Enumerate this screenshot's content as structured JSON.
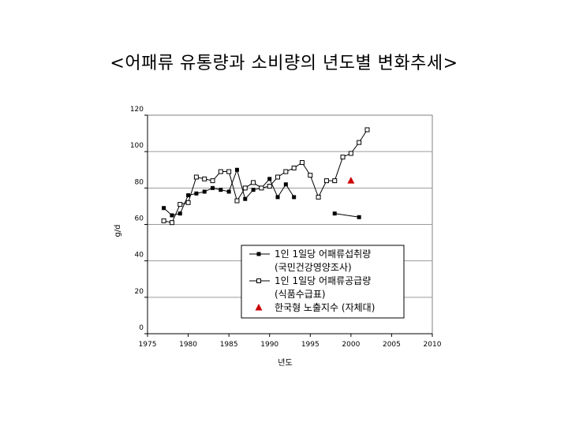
{
  "slide": {
    "title": "<어패류 유통량과 소비량의 년도별 변화추세>"
  },
  "chart_data": {
    "type": "line",
    "xlabel": "년도",
    "ylabel": "g/d",
    "xlim": [
      1975,
      2010
    ],
    "ylim": [
      0,
      120
    ],
    "x_ticks": [
      1975,
      1980,
      1985,
      1990,
      1995,
      2000,
      2005,
      2010
    ],
    "y_ticks": [
      0,
      20,
      40,
      60,
      80,
      100,
      120
    ],
    "grid": "horizontal",
    "legend_position": "lower-right",
    "series": [
      {
        "name_lines": [
          "1인 1일당 어패류섭취량",
          "(국민건강영양조사)"
        ],
        "marker": "filled-square",
        "color": "#000000",
        "segments": [
          [
            [
              1977,
              69
            ],
            [
              1978,
              65
            ],
            [
              1979,
              66
            ],
            [
              1980,
              76
            ],
            [
              1981,
              77
            ],
            [
              1982,
              78
            ],
            [
              1983,
              80
            ],
            [
              1984,
              79
            ],
            [
              1985,
              78
            ],
            [
              1986,
              90
            ],
            [
              1987,
              74
            ],
            [
              1988,
              79
            ],
            [
              1989,
              80
            ],
            [
              1990,
              85
            ],
            [
              1991,
              75
            ],
            [
              1992,
              82
            ],
            [
              1993,
              75
            ]
          ],
          [
            [
              1998,
              66
            ],
            [
              2001,
              64
            ]
          ]
        ]
      },
      {
        "name_lines": [
          "1인 1일당 어패류공급량",
          "(식품수급표)"
        ],
        "marker": "open-square",
        "color": "#000000",
        "segments": [
          [
            [
              1977,
              62
            ],
            [
              1978,
              61
            ],
            [
              1979,
              71
            ],
            [
              1980,
              72
            ],
            [
              1981,
              86
            ],
            [
              1982,
              85
            ],
            [
              1983,
              84
            ],
            [
              1984,
              89
            ],
            [
              1985,
              89
            ],
            [
              1986,
              73
            ],
            [
              1987,
              80
            ],
            [
              1988,
              83
            ],
            [
              1989,
              80
            ],
            [
              1990,
              81
            ],
            [
              1991,
              86
            ],
            [
              1992,
              89
            ],
            [
              1993,
              91
            ],
            [
              1994,
              94
            ],
            [
              1995,
              87
            ],
            [
              1996,
              75
            ],
            [
              1997,
              84
            ],
            [
              1998,
              84
            ],
            [
              1999,
              97
            ],
            [
              2000,
              99
            ],
            [
              2001,
              105
            ],
            [
              2002,
              112
            ]
          ]
        ]
      },
      {
        "name_lines": [
          "한국형 노출지수 (자체대)"
        ],
        "marker": "triangle",
        "color": "#cc0000",
        "points": [
          [
            2000,
            84
          ]
        ]
      }
    ]
  }
}
